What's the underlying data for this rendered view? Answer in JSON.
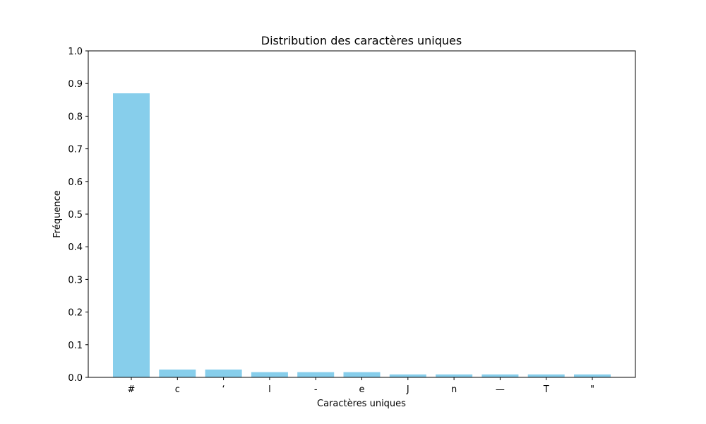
{
  "chart_data": {
    "type": "bar",
    "title": "Distribution des caractères uniques",
    "xlabel": "Caractères uniques",
    "ylabel": "Fréquence",
    "categories": [
      "#",
      "c",
      "‘",
      "l",
      "-",
      "e",
      "J",
      "n",
      "—",
      "T",
      "\""
    ],
    "values": [
      0.87,
      0.024,
      0.024,
      0.016,
      0.016,
      0.016,
      0.009,
      0.009,
      0.009,
      0.009,
      0.009
    ],
    "ylim": [
      0,
      1.0
    ],
    "yticks": [
      0.0,
      0.1,
      0.2,
      0.3,
      0.4,
      0.5,
      0.6,
      0.7,
      0.8,
      0.9,
      1.0
    ],
    "ytick_labels": [
      "0.0",
      "0.1",
      "0.2",
      "0.3",
      "0.4",
      "0.5",
      "0.6",
      "0.7",
      "0.8",
      "0.9",
      "1.0"
    ],
    "grid": false,
    "bar_color": "#87CEEB"
  }
}
